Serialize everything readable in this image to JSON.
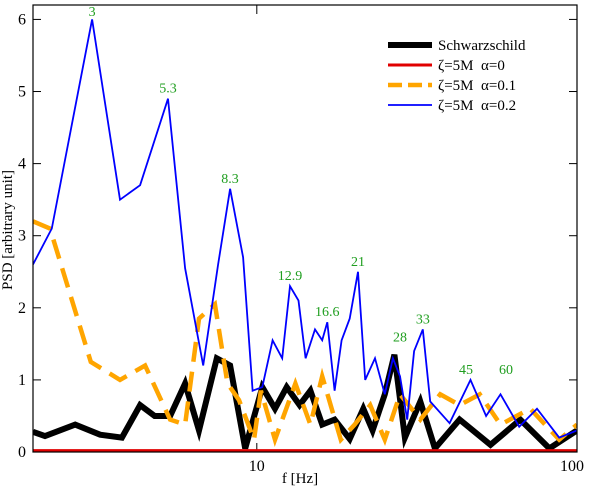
{
  "chart_data": {
    "type": "line",
    "xlabel": "f [Hz]",
    "ylabel": "PSD [arbitrary unit]",
    "xscale": "log",
    "xlim": [
      2,
      100
    ],
    "ylim": [
      0,
      6.2
    ],
    "xticks": [
      10,
      100
    ],
    "yticks": [
      0,
      1,
      2,
      3,
      4,
      5,
      6
    ],
    "legend": "upper right",
    "series": [
      {
        "name": "Schwarzschild",
        "color": "#000000",
        "linewidth": 6,
        "dashed": false,
        "x": [
          2,
          2.18,
          2.71,
          3.24,
          3.79,
          4.32,
          4.8,
          5.36,
          5.97,
          6.6,
          7.5,
          8.25,
          9.2,
          10.4,
          11.4,
          12.4,
          13.6,
          14.7,
          16,
          17.5,
          19.5,
          21.5,
          23,
          25.1,
          26.9,
          29,
          32.4,
          36,
          43,
          53.7,
          66.5,
          82,
          100
        ],
        "values": [
          0.28,
          0.22,
          0.38,
          0.24,
          0.2,
          0.65,
          0.5,
          0.5,
          0.95,
          0.3,
          1.3,
          1.2,
          0.05,
          0.9,
          0.6,
          0.9,
          0.65,
          0.85,
          0.38,
          0.45,
          0.18,
          0.6,
          0.3,
          0.8,
          1.35,
          0.2,
          0.7,
          0.05,
          0.45,
          0.1,
          0.45,
          0.05,
          0.3
        ]
      },
      {
        "name": "ζ=5M  α=0",
        "color": "#e00000",
        "linewidth": 3,
        "dashed": false,
        "x": [
          2,
          10,
          50,
          100
        ],
        "values": [
          0.02,
          0.02,
          0.02,
          0.02
        ]
      },
      {
        "name": "ζ=5M  α=0.1",
        "color": "#ffa500",
        "linewidth": 4.5,
        "dashed": true,
        "x": [
          2,
          2.26,
          3.03,
          3.74,
          4.48,
          5.36,
          5.97,
          6.6,
          7.4,
          8.1,
          8.8,
          9.8,
          10.3,
          11.4,
          13.2,
          14.7,
          16,
          18.3,
          20.2,
          22.6,
          25.1,
          28,
          32.4,
          37.4,
          43,
          49.7,
          57.7,
          71.5,
          88,
          100
        ],
        "values": [
          3.2,
          3.1,
          1.25,
          1.0,
          1.2,
          0.45,
          0.38,
          1.85,
          2.05,
          0.95,
          0.72,
          0.17,
          0.85,
          0.17,
          0.95,
          0.38,
          1.05,
          0.17,
          0.38,
          0.65,
          0.17,
          0.8,
          0.45,
          0.8,
          0.65,
          0.8,
          0.38,
          0.6,
          0.17,
          0.38
        ]
      },
      {
        "name": "ζ=5M  α=0.2",
        "color": "#0000ff",
        "linewidth": 1.8,
        "dashed": false,
        "x": [
          2,
          2.29,
          3.06,
          3.74,
          4.32,
          5.28,
          5.97,
          6.8,
          7.57,
          8.25,
          9.06,
          9.7,
          10.4,
          11.2,
          12,
          12.7,
          13.5,
          14.2,
          15.2,
          16,
          16.6,
          17.5,
          18.4,
          19.5,
          20.7,
          21.8,
          23.4,
          25.1,
          26.6,
          28,
          29.5,
          31,
          33,
          34.8,
          40,
          46.5,
          52,
          57.7,
          66,
          75,
          88,
          100
        ],
        "values": [
          2.6,
          3.1,
          6.0,
          3.5,
          3.7,
          4.9,
          2.55,
          1.2,
          2.6,
          3.65,
          2.7,
          0.85,
          0.9,
          1.55,
          1.3,
          2.3,
          2.1,
          1.3,
          1.7,
          1.55,
          1.8,
          0.85,
          1.55,
          1.85,
          2.5,
          1.0,
          1.3,
          0.8,
          1.3,
          1.05,
          0.45,
          1.4,
          1.7,
          0.7,
          0.4,
          1.0,
          0.5,
          0.8,
          0.35,
          0.6,
          0.2,
          0.3
        ]
      }
    ],
    "annotations": [
      {
        "label": "3",
        "x": 3.06,
        "y": 6.0
      },
      {
        "label": "5.3",
        "x": 5.28,
        "y": 4.9
      },
      {
        "label": "8.3",
        "x": 8.25,
        "y": 3.65
      },
      {
        "label": "12.9",
        "x": 12.7,
        "y": 2.3
      },
      {
        "label": "16.6",
        "x": 16.6,
        "y": 1.8
      },
      {
        "label": "21",
        "x": 20.7,
        "y": 2.5
      },
      {
        "label": "28",
        "x": 28,
        "y": 1.45
      },
      {
        "label": "33",
        "x": 33,
        "y": 1.7
      },
      {
        "label": "45",
        "x": 45,
        "y": 1.0
      },
      {
        "label": "60",
        "x": 60,
        "y": 1.0
      }
    ]
  }
}
